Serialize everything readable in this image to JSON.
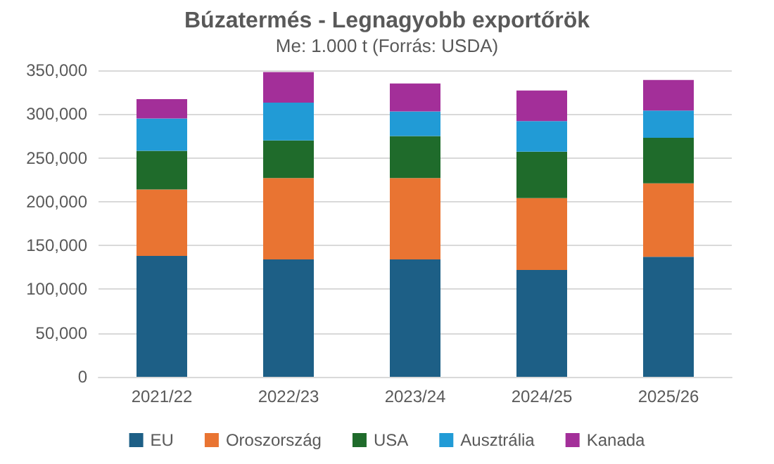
{
  "chart_data": {
    "type": "bar",
    "title": "Búzatermés - Legnagyobb exportőrök",
    "subtitle": "Me: 1.000 t (Forrás: USDA)",
    "categories": [
      "2021/22",
      "2022/23",
      "2023/24",
      "2024/25",
      "2025/26"
    ],
    "series": [
      {
        "name": "EU",
        "color": "#1d5f86",
        "values": [
          138000,
          134000,
          134000,
          122000,
          137000
        ]
      },
      {
        "name": "Oroszország",
        "color": "#e97432",
        "values": [
          76000,
          93000,
          93000,
          82000,
          84000
        ]
      },
      {
        "name": "USA",
        "color": "#1f6b2b",
        "values": [
          44000,
          43000,
          48000,
          53000,
          52000
        ]
      },
      {
        "name": "Ausztrália",
        "color": "#219bd6",
        "values": [
          37000,
          43000,
          28000,
          35000,
          31000
        ]
      },
      {
        "name": "Kanada",
        "color": "#a32f99",
        "values": [
          22000,
          35000,
          32000,
          35000,
          35000
        ]
      }
    ],
    "stacked": true,
    "ylim": [
      0,
      350000
    ],
    "yticks": [
      0,
      {
        "value": 50000,
        "label": "50,000"
      },
      {
        "value": 100000,
        "label": "100,000"
      },
      {
        "value": 150000,
        "label": "150,000"
      },
      {
        "value": 200000,
        "label": "200,000"
      },
      {
        "value": 250000,
        "label": "250,000"
      },
      {
        "value": 300000,
        "label": "300,000"
      },
      {
        "value": 350000,
        "label": "350,000"
      }
    ],
    "grid": "y",
    "legend": "bottom"
  }
}
